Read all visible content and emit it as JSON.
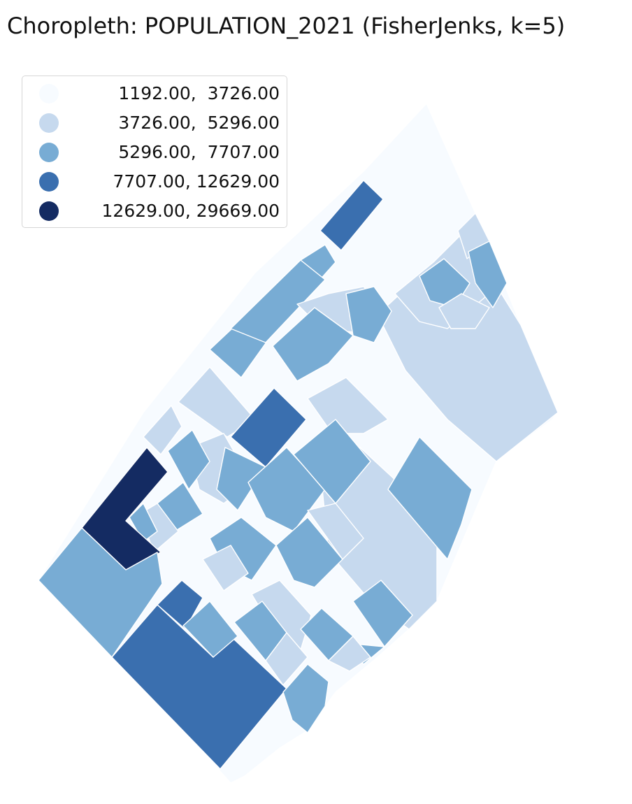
{
  "title": "Choropleth: POPULATION_2021 (FisherJenks, k=5)",
  "legend": {
    "items": [
      {
        "label": "1192.00,  3726.00",
        "color": "#f7fbff",
        "range": [
          1192.0,
          3726.0
        ]
      },
      {
        "label": "3726.00,  5296.00",
        "color": "#c6d9ee",
        "range": [
          3726.0,
          5296.0
        ]
      },
      {
        "label": "5296.00,  7707.00",
        "color": "#78acd4",
        "range": [
          5296.0,
          7707.0
        ]
      },
      {
        "label": "7707.00, 12629.00",
        "color": "#3a6faf",
        "range": [
          7707.0,
          12629.0
        ]
      },
      {
        "label": "12629.00, 29669.00",
        "color": "#142b62",
        "range": [
          12629.0,
          29669.0
        ]
      }
    ]
  },
  "map": {
    "variable": "POPULATION_2021",
    "classification": "FisherJenks",
    "k": 5,
    "boundary_color": "#ffffff"
  }
}
